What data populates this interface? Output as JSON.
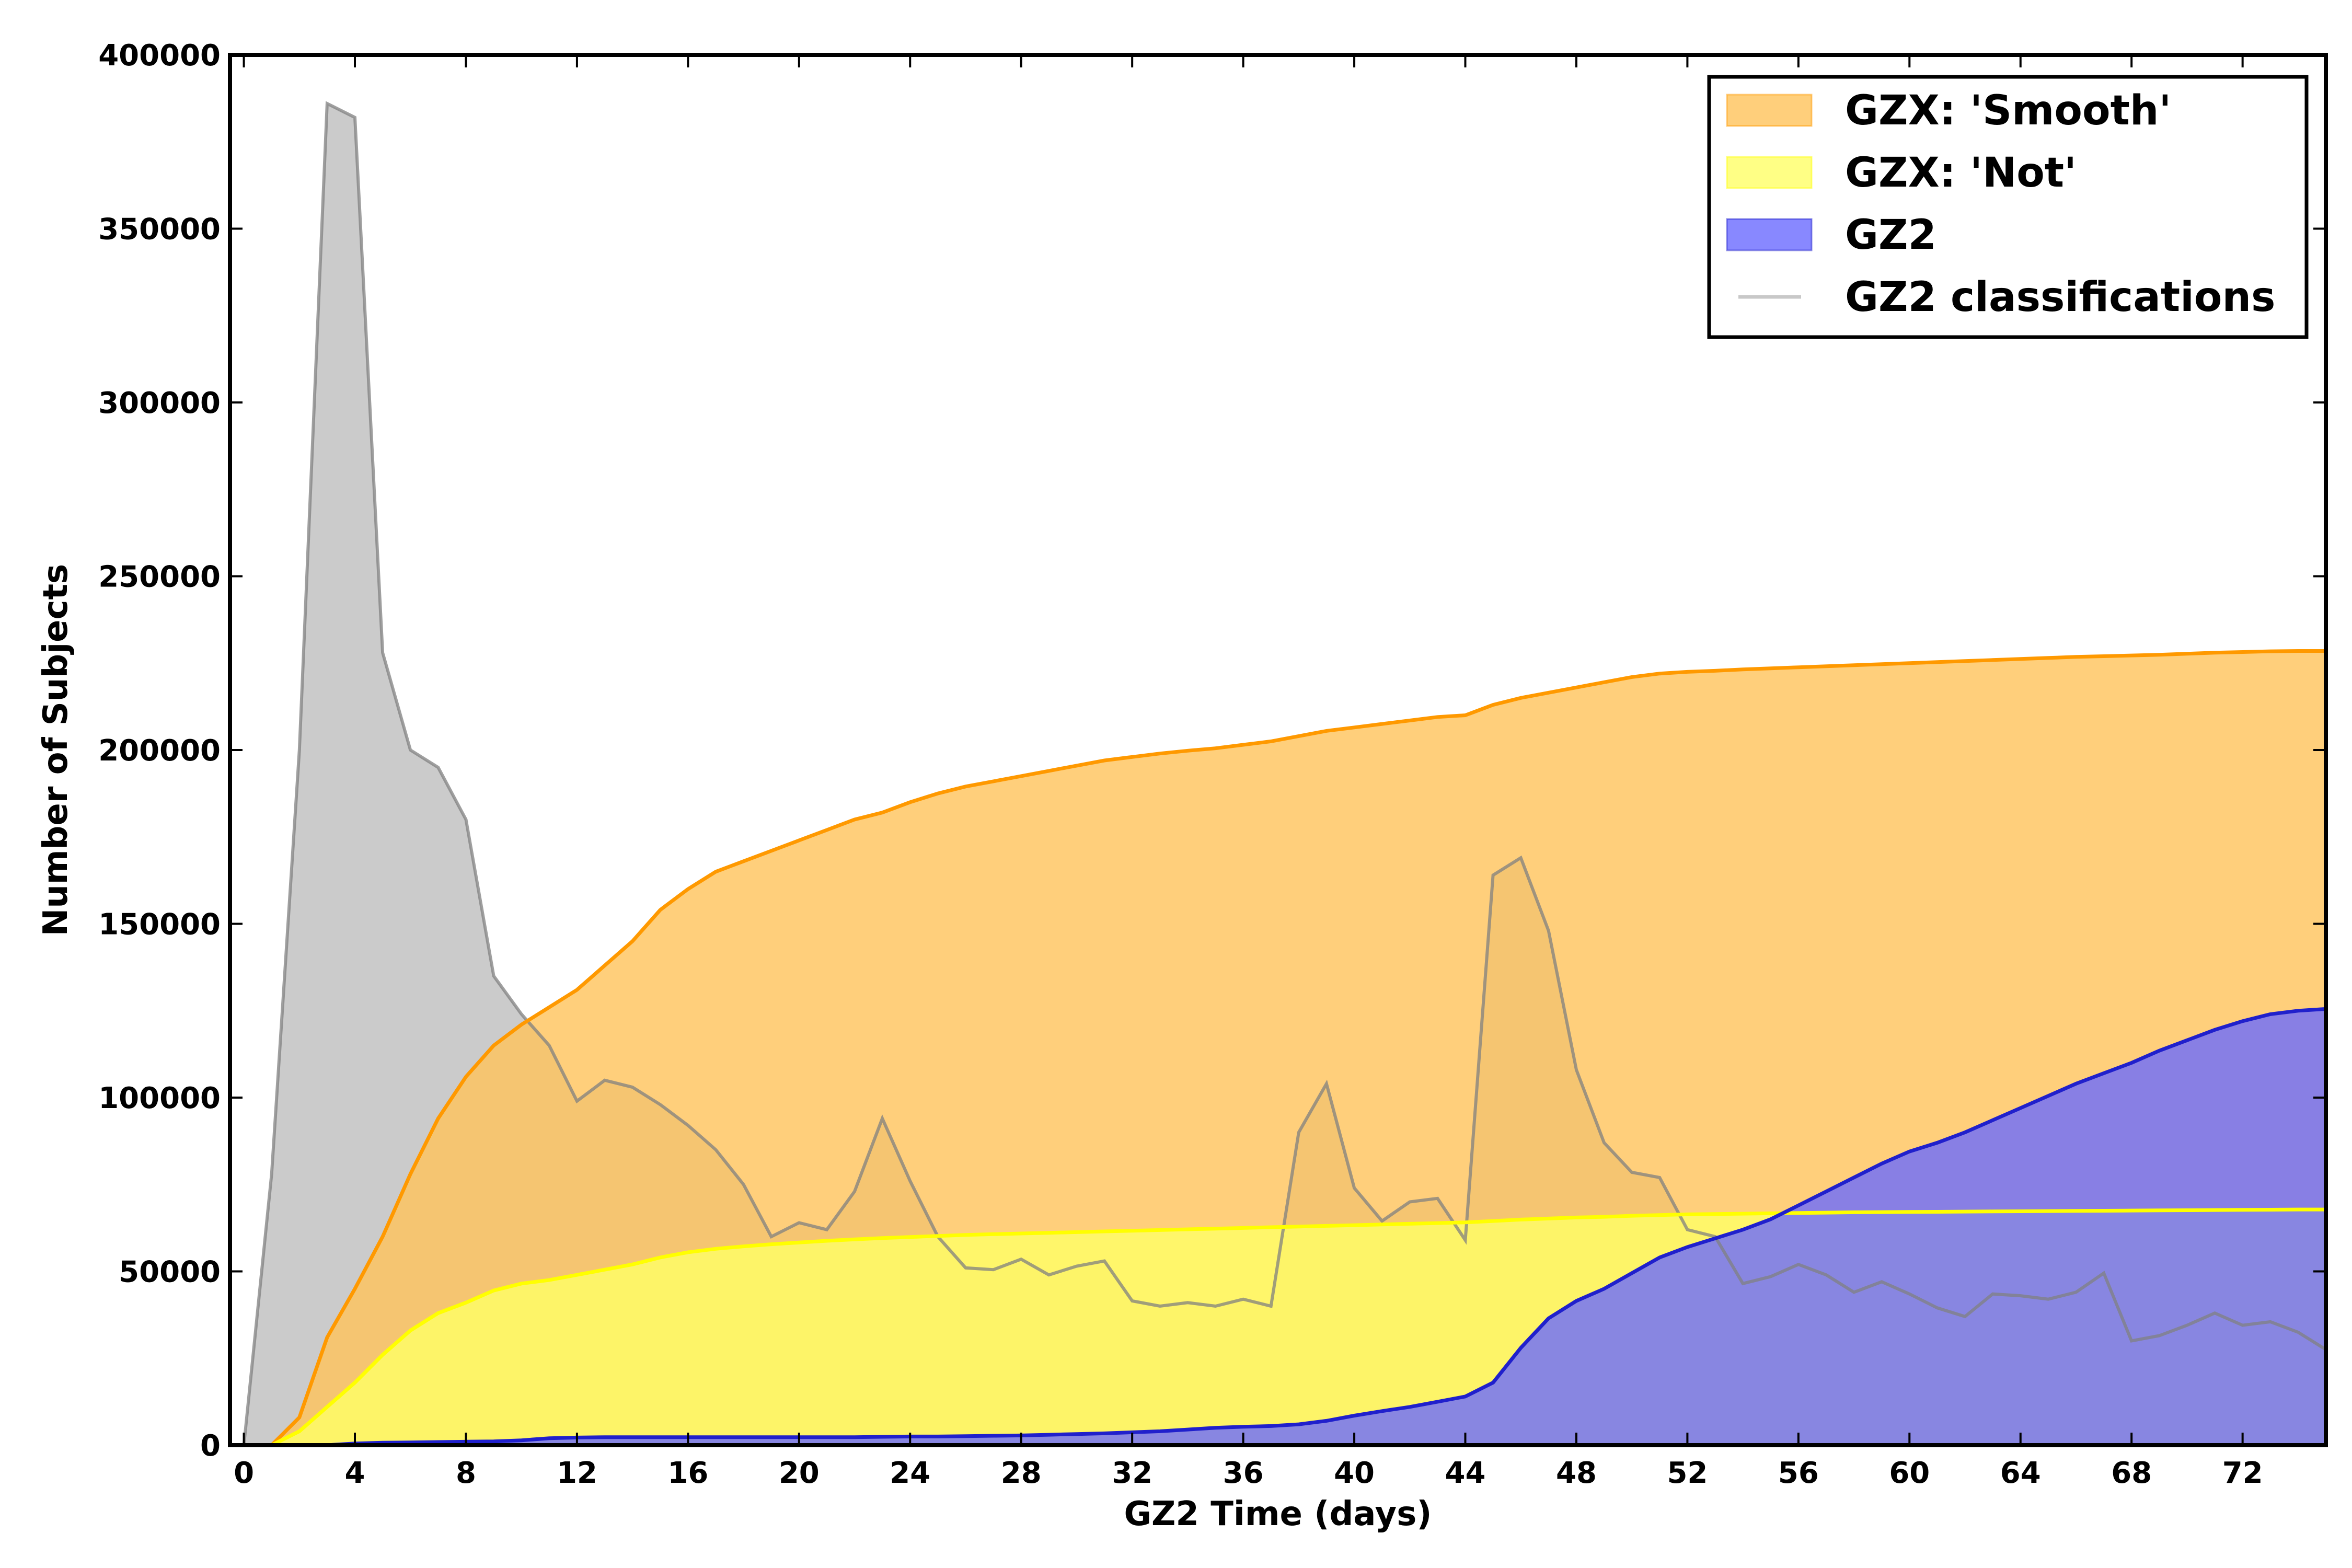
{
  "chart_data": {
    "type": "area",
    "xlabel": "GZ2 Time (days)",
    "ylabel": "Number of Subjects",
    "xlim": [
      -0.5,
      75
    ],
    "ylim": [
      0,
      400000
    ],
    "x_ticks": [
      0,
      4,
      8,
      12,
      16,
      20,
      24,
      28,
      32,
      36,
      40,
      44,
      48,
      52,
      56,
      60,
      64,
      68,
      72
    ],
    "y_ticks": [
      0,
      50000,
      100000,
      150000,
      200000,
      250000,
      300000,
      350000,
      400000
    ],
    "legend_position": "top-right",
    "grid": false,
    "series": [
      {
        "name": "GZ2 classifications",
        "kind": "line-filled",
        "color": "#808080",
        "fill": "#c8c8c8",
        "x": [
          0,
          1,
          2,
          3,
          4,
          5,
          6,
          7,
          8,
          9,
          10,
          11,
          12,
          13,
          14,
          15,
          16,
          17,
          18,
          19,
          20,
          21,
          22,
          23,
          24,
          25,
          26,
          27,
          28,
          29,
          30,
          31,
          32,
          33,
          34,
          35,
          36,
          37,
          38,
          39,
          40,
          41,
          42,
          43,
          44,
          45,
          46,
          47,
          48,
          49,
          50,
          51,
          52,
          53,
          54,
          55,
          56,
          57,
          58,
          59,
          60,
          61,
          62,
          63,
          64,
          65,
          66,
          67,
          68,
          69,
          70,
          71,
          72,
          73,
          74,
          75
        ],
        "values": [
          0,
          78000,
          200000,
          386000,
          382000,
          228000,
          200000,
          195000,
          180000,
          135000,
          124000,
          115000,
          99000,
          105000,
          103000,
          98000,
          92000,
          85000,
          75000,
          60000,
          64000,
          62000,
          73000,
          94000,
          76000,
          60000,
          51000,
          50500,
          53500,
          49000,
          51500,
          53000,
          41500,
          40000,
          41000,
          40000,
          42000,
          40000,
          90000,
          104000,
          74000,
          64500,
          70000,
          71000,
          59000,
          164000,
          169000,
          148000,
          108000,
          87000,
          78500,
          77000,
          62000,
          60000,
          46500,
          48500,
          52000,
          49000,
          44000,
          47000,
          43500,
          39500,
          37000,
          43500,
          43000,
          42000,
          44000,
          49500,
          30000,
          31500,
          34500,
          38000,
          34500,
          35500,
          32500,
          27500
        ]
      },
      {
        "name": "GZX: 'Smooth'",
        "kind": "area",
        "color": "#ff9900",
        "fill": "#ffc35a",
        "x": [
          0,
          1,
          2,
          3,
          4,
          5,
          6,
          7,
          8,
          9,
          10,
          11,
          12,
          13,
          14,
          15,
          16,
          17,
          18,
          19,
          20,
          21,
          22,
          23,
          24,
          25,
          26,
          27,
          28,
          29,
          30,
          31,
          32,
          33,
          34,
          35,
          36,
          37,
          38,
          39,
          40,
          41,
          42,
          43,
          44,
          45,
          46,
          47,
          48,
          49,
          50,
          51,
          52,
          53,
          54,
          55,
          56,
          57,
          58,
          59,
          60,
          61,
          62,
          63,
          64,
          65,
          66,
          67,
          68,
          69,
          70,
          71,
          72,
          73,
          74,
          75
        ],
        "values": [
          0,
          0,
          8000,
          31000,
          45000,
          60000,
          78000,
          94000,
          106000,
          115000,
          121000,
          126000,
          131000,
          138000,
          145000,
          154000,
          160000,
          165000,
          168000,
          171000,
          174000,
          177000,
          180000,
          182000,
          185000,
          187500,
          189500,
          191000,
          192500,
          194000,
          195500,
          197000,
          198000,
          199000,
          199800,
          200500,
          201500,
          202500,
          204000,
          205500,
          206500,
          207500,
          208500,
          209500,
          210000,
          213000,
          215000,
          216500,
          218000,
          219500,
          221000,
          222000,
          222500,
          222800,
          223200,
          223500,
          223800,
          224100,
          224400,
          224700,
          225000,
          225300,
          225600,
          225900,
          226200,
          226500,
          226800,
          227000,
          227200,
          227400,
          227700,
          228000,
          228200,
          228400,
          228500,
          228500
        ]
      },
      {
        "name": "GZX: 'Not'",
        "kind": "area",
        "color": "#ffff00",
        "fill": "#ffff66",
        "x": [
          0,
          1,
          2,
          3,
          4,
          5,
          6,
          7,
          8,
          9,
          10,
          11,
          12,
          13,
          14,
          15,
          16,
          17,
          18,
          19,
          20,
          21,
          22,
          23,
          24,
          25,
          26,
          27,
          28,
          29,
          30,
          31,
          32,
          33,
          34,
          35,
          36,
          37,
          38,
          39,
          40,
          41,
          42,
          43,
          44,
          45,
          46,
          47,
          48,
          49,
          50,
          51,
          52,
          53,
          54,
          55,
          56,
          57,
          58,
          59,
          60,
          61,
          62,
          63,
          64,
          65,
          66,
          67,
          68,
          69,
          70,
          71,
          72,
          73,
          74,
          75
        ],
        "values": [
          0,
          0,
          4000,
          11000,
          18000,
          26000,
          33000,
          38000,
          41000,
          44500,
          46500,
          47500,
          49000,
          50500,
          52000,
          54000,
          55500,
          56500,
          57200,
          57800,
          58300,
          58800,
          59200,
          59600,
          59900,
          60200,
          60500,
          60700,
          60900,
          61100,
          61300,
          61500,
          61700,
          61900,
          62100,
          62300,
          62500,
          62700,
          62900,
          63100,
          63300,
          63500,
          63700,
          63900,
          64100,
          64500,
          64900,
          65200,
          65500,
          65700,
          66000,
          66200,
          66400,
          66500,
          66600,
          66700,
          66800,
          66900,
          67000,
          67050,
          67100,
          67150,
          67200,
          67250,
          67300,
          67350,
          67400,
          67450,
          67500,
          67550,
          67600,
          67650,
          67700,
          67750,
          67800,
          67800
        ]
      },
      {
        "name": "GZ2",
        "kind": "area",
        "color": "#2020cc",
        "fill": "#6a6aff",
        "x": [
          0,
          1,
          2,
          3,
          4,
          5,
          6,
          7,
          8,
          9,
          10,
          11,
          12,
          13,
          14,
          15,
          16,
          17,
          18,
          19,
          20,
          21,
          22,
          23,
          24,
          25,
          26,
          27,
          28,
          29,
          30,
          31,
          32,
          33,
          34,
          35,
          36,
          37,
          38,
          39,
          40,
          41,
          42,
          43,
          44,
          45,
          46,
          47,
          48,
          49,
          50,
          51,
          52,
          53,
          54,
          55,
          56,
          57,
          58,
          59,
          60,
          61,
          62,
          63,
          64,
          65,
          66,
          67,
          68,
          69,
          70,
          71,
          72,
          73,
          74,
          75
        ],
        "values": [
          0,
          0,
          0,
          0,
          500,
          700,
          800,
          900,
          1000,
          1100,
          1400,
          2000,
          2200,
          2300,
          2300,
          2300,
          2300,
          2300,
          2300,
          2300,
          2300,
          2300,
          2300,
          2400,
          2500,
          2500,
          2600,
          2700,
          2800,
          3000,
          3200,
          3400,
          3700,
          4000,
          4500,
          5000,
          5300,
          5500,
          6000,
          7000,
          8500,
          9800,
          11000,
          12500,
          14000,
          18000,
          28000,
          36500,
          41500,
          45000,
          49500,
          54000,
          57000,
          59500,
          62000,
          65000,
          69000,
          73000,
          77000,
          81000,
          84500,
          87000,
          90000,
          93500,
          97000,
          100500,
          104000,
          107000,
          110000,
          113500,
          116500,
          119500,
          122000,
          124000,
          125000,
          125500
        ]
      }
    ],
    "legend": [
      "GZX: 'Smooth'",
      "GZX: 'Not'",
      "GZ2",
      "GZ2 classifications"
    ]
  }
}
